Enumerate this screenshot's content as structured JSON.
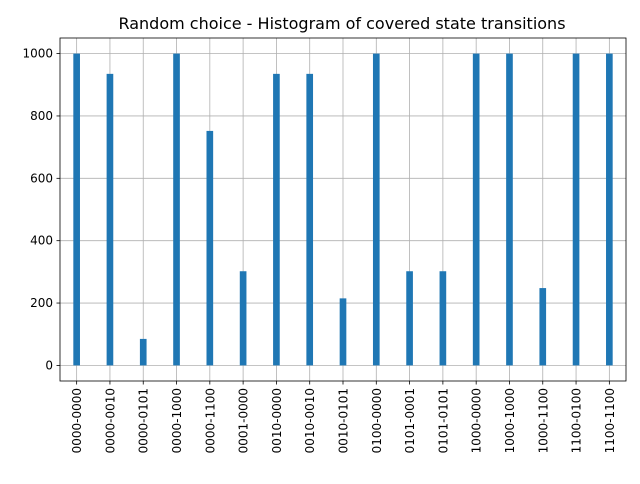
{
  "chart_data": {
    "type": "bar",
    "title": "Random choice - Histogram of covered state transitions",
    "xlabel": "",
    "ylabel": "",
    "categories": [
      "0000-0000",
      "0000-0010",
      "0000-0101",
      "0000-1000",
      "0000-1100",
      "0001-0000",
      "0010-0000",
      "0010-0010",
      "0010-0101",
      "0100-0000",
      "0101-0001",
      "0101-0101",
      "1000-0000",
      "1000-1000",
      "1000-1100",
      "1100-0100",
      "1100-1100"
    ],
    "values": [
      1000,
      935,
      85,
      1000,
      752,
      302,
      935,
      935,
      215,
      1000,
      302,
      302,
      1000,
      1000,
      248,
      1000,
      1000
    ],
    "ylim": [
      -50,
      1050
    ],
    "yticks": [
      0,
      200,
      400,
      600,
      800,
      1000
    ],
    "grid": true,
    "bar_color": "#1f77b4",
    "grid_color": "#b0b0b0"
  }
}
